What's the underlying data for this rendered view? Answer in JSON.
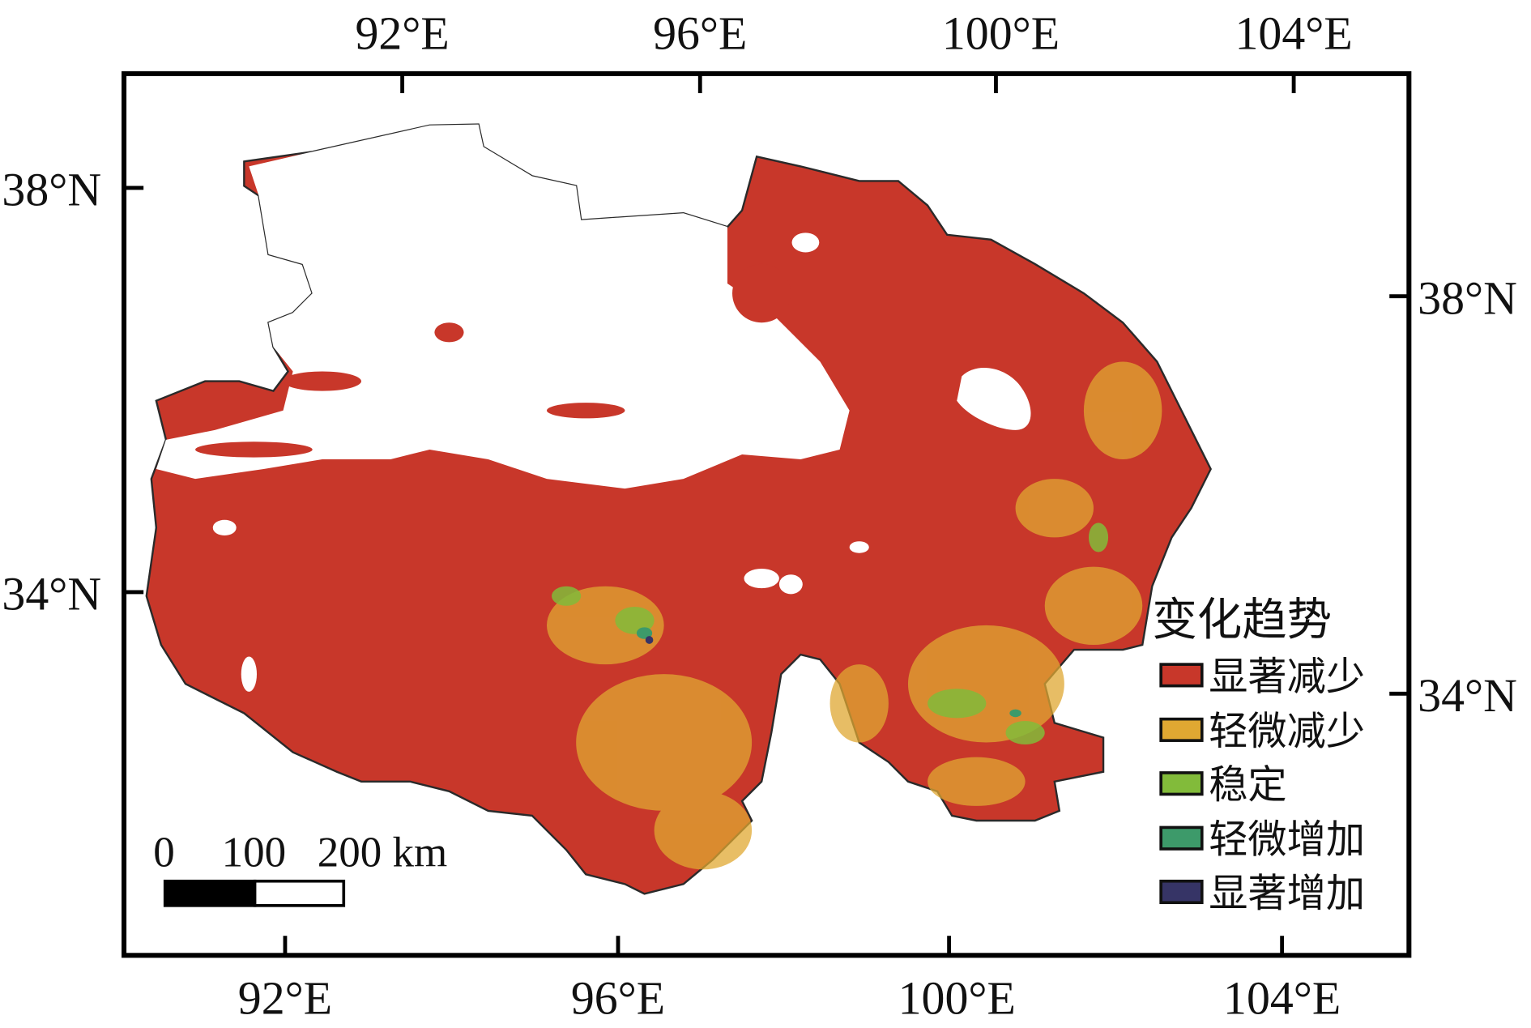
{
  "map": {
    "top_axis_labels": [
      "92°E",
      "96°E",
      "100°E",
      "104°E"
    ],
    "bottom_axis_labels": [
      "92°E",
      "96°E",
      "100°E",
      "104°E"
    ],
    "left_axis_labels": [
      "38°N",
      "34°N"
    ],
    "right_axis_labels": [
      "38°N",
      "34°N"
    ],
    "region_fill_color": "#c8372a",
    "no_data_color": "#ffffff"
  },
  "legend": {
    "title": "变化趋势",
    "items": [
      {
        "label": "显著减少",
        "color": "#c8372a"
      },
      {
        "label": "轻微减少",
        "color": "#e0a832"
      },
      {
        "label": "稳定",
        "color": "#82bb3a"
      },
      {
        "label": "轻微增加",
        "color": "#3d9a6a"
      },
      {
        "label": "显著增加",
        "color": "#363466"
      }
    ]
  },
  "scale_bar": {
    "labels": [
      "0",
      "100",
      "200 km"
    ]
  }
}
